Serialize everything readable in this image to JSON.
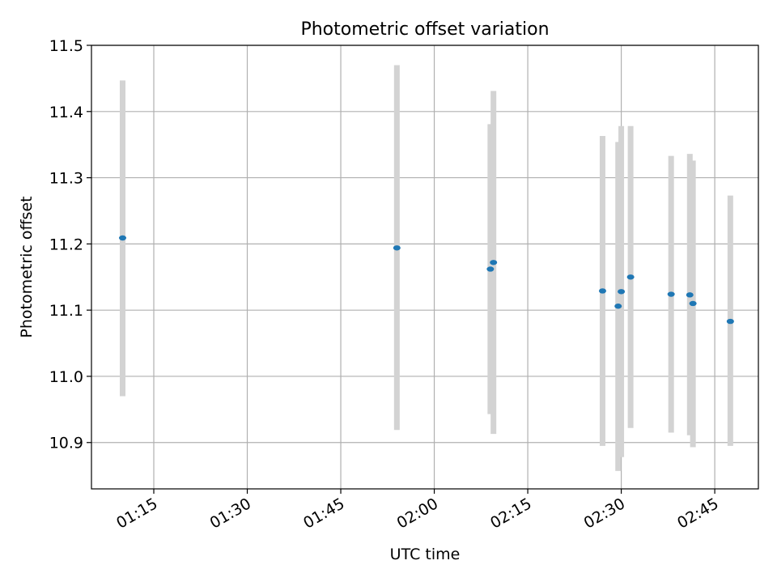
{
  "colors": {
    "background": "#ffffff",
    "grid": "#b0b0b0",
    "axes": "#000000",
    "errorbar": "#d3d3d3",
    "marker": "#1f77b4"
  },
  "chart_data": {
    "type": "scatter",
    "title": "Photometric offset variation",
    "xlabel": "UTC time",
    "ylabel": "Photometric offset",
    "grid": true,
    "legend": "none",
    "xlim": [
      "01:05",
      "02:52"
    ],
    "ylim": [
      10.83,
      11.5
    ],
    "x_ticks": [
      "01:15",
      "01:30",
      "01:45",
      "02:00",
      "02:15",
      "02:30",
      "02:45"
    ],
    "y_ticks": [
      "10.9",
      "11.0",
      "11.1",
      "11.2",
      "11.3",
      "11.4",
      "11.5"
    ],
    "series": [
      {
        "marker": "point",
        "error_bars": "vertical",
        "points": [
          {
            "x": "01:10",
            "y": 11.209,
            "ylow": 10.97,
            "yhigh": 11.447
          },
          {
            "x": "01:54",
            "y": 11.194,
            "ylow": 10.919,
            "yhigh": 11.47
          },
          {
            "x": "02:09",
            "y": 11.162,
            "ylow": 10.943,
            "yhigh": 11.381
          },
          {
            "x": "02:09:30",
            "y": 11.172,
            "ylow": 10.913,
            "yhigh": 11.431
          },
          {
            "x": "02:27",
            "y": 11.129,
            "ylow": 10.895,
            "yhigh": 11.363
          },
          {
            "x": "02:29:30",
            "y": 11.106,
            "ylow": 10.857,
            "yhigh": 11.354
          },
          {
            "x": "02:30",
            "y": 11.128,
            "ylow": 10.878,
            "yhigh": 11.378
          },
          {
            "x": "02:31:30",
            "y": 11.15,
            "ylow": 10.922,
            "yhigh": 11.378
          },
          {
            "x": "02:38",
            "y": 11.124,
            "ylow": 10.915,
            "yhigh": 11.333
          },
          {
            "x": "02:41",
            "y": 11.123,
            "ylow": 10.911,
            "yhigh": 11.336
          },
          {
            "x": "02:41:30",
            "y": 11.11,
            "ylow": 10.893,
            "yhigh": 11.326
          },
          {
            "x": "02:47:30",
            "y": 11.083,
            "ylow": 10.895,
            "yhigh": 11.273
          }
        ]
      }
    ]
  }
}
